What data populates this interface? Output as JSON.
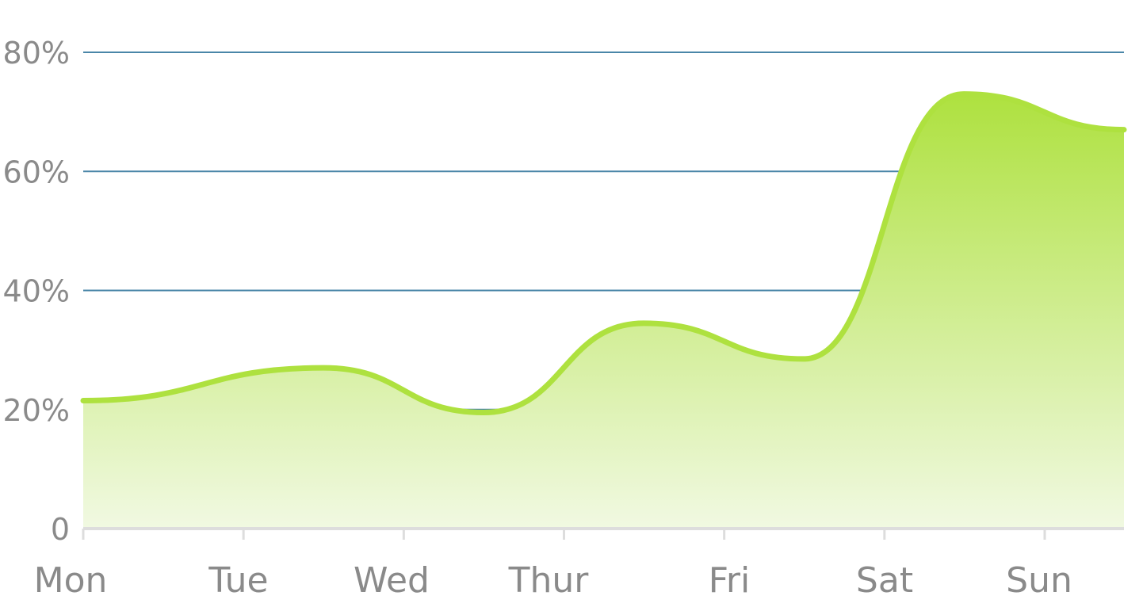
{
  "chart_data": {
    "type": "area",
    "title": "",
    "xlabel": "",
    "ylabel": "",
    "x_start": 0,
    "x_end": 6.5,
    "ylim": [
      0,
      80
    ],
    "grid": true,
    "legend": "none",
    "x_ticks": [
      {
        "x": 0,
        "label": "Mon"
      },
      {
        "x": 1,
        "label": "Tue"
      },
      {
        "x": 2,
        "label": "Wed"
      },
      {
        "x": 3,
        "label": "Thur"
      },
      {
        "x": 4,
        "label": "Fri"
      },
      {
        "x": 5,
        "label": "Sat"
      },
      {
        "x": 6,
        "label": "Sun"
      }
    ],
    "y_ticks": [
      {
        "value": 0,
        "label": "0"
      },
      {
        "value": 20,
        "label": "20%"
      },
      {
        "value": 40,
        "label": "40%"
      },
      {
        "value": 60,
        "label": "60%"
      },
      {
        "value": 80,
        "label": "80%"
      }
    ],
    "series": [
      {
        "color": "#aee13f",
        "points": [
          {
            "x": 0,
            "y": 21.5
          },
          {
            "x": 1.5,
            "y": 27
          },
          {
            "x": 2.5,
            "y": 19.5
          },
          {
            "x": 3.5,
            "y": 34.5
          },
          {
            "x": 4.5,
            "y": 28.5
          },
          {
            "x": 5.5,
            "y": 73
          },
          {
            "x": 6.5,
            "y": 67
          }
        ]
      }
    ],
    "colors": {
      "gridline": "#4a86a8",
      "baseline": "#dddddd",
      "tick_label": "#8a8a8a",
      "area_top": "#aee13f",
      "area_bottom": "#f1f9e2"
    }
  }
}
